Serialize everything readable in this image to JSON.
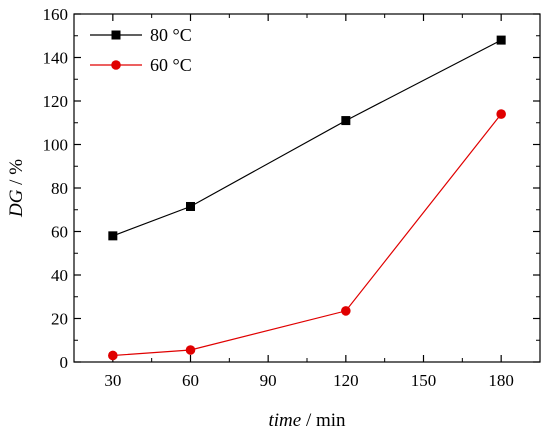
{
  "chart_data": {
    "type": "line",
    "x": [
      30,
      60,
      120,
      180
    ],
    "xlim": [
      15,
      195
    ],
    "ylim": [
      0,
      160
    ],
    "xticks": [
      "30",
      "60",
      "90",
      "120",
      "150",
      "180"
    ],
    "yticks": [
      "0",
      "20",
      "40",
      "60",
      "80",
      "100",
      "120",
      "140",
      "160"
    ],
    "xlabel": {
      "var": "time",
      "unit": " / min"
    },
    "ylabel": {
      "var": "DG",
      "unit": " / %"
    },
    "grid": false,
    "legend": "top-left",
    "series": [
      {
        "name": "80 °C",
        "marker": "square",
        "color": "#000000",
        "values": [
          58,
          71.5,
          111,
          148
        ]
      },
      {
        "name": "60 °C",
        "marker": "circle",
        "color": "#e00000",
        "values": [
          3,
          5.5,
          23.5,
          114
        ]
      }
    ]
  }
}
